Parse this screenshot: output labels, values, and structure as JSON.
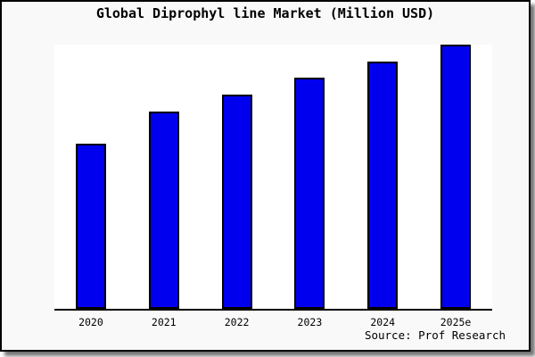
{
  "window": {
    "background": "#ffffff",
    "frame_background": "#f9f9f9",
    "frame_border_color": "#000000"
  },
  "chart_data": {
    "type": "bar",
    "title": "Global Diprophyl line Market (Million USD)",
    "categories": [
      "2020",
      "2021",
      "2022",
      "2023",
      "2024",
      "2025e"
    ],
    "values": [
      62.6,
      74.8,
      81.2,
      87.6,
      93.6,
      100
    ],
    "values_note": "No y-axis, gridlines or data labels are shown; values estimated from bar heights as percent of the tallest bar (2025e = 100)",
    "xlabel": "",
    "ylabel": "",
    "ylim": [
      0,
      100
    ],
    "grid": false,
    "legend": false,
    "bar_color": "#0000ee",
    "bar_border_color": "#000000",
    "source": "Source: Prof Research"
  }
}
